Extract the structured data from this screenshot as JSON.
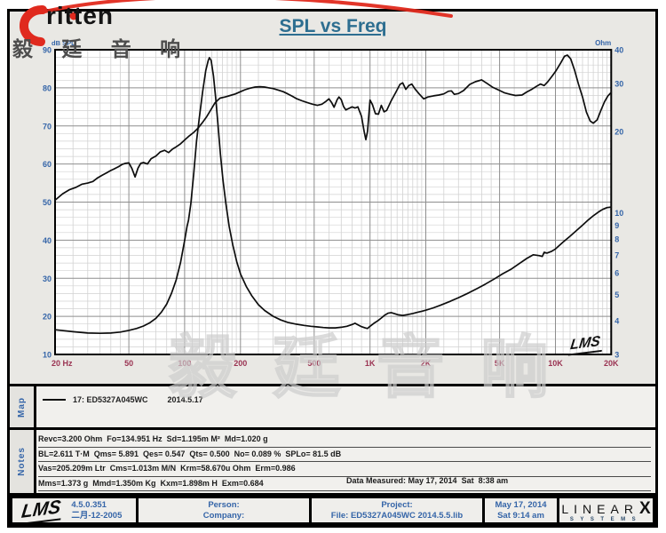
{
  "title": "SPL vs Freq",
  "brand": {
    "logo_text": "ritten",
    "logo_cn": "毅 廷 音 响",
    "watermark": "毅 廷 音 响",
    "accent_red": "#e02a1e"
  },
  "colors": {
    "title": "#2d6e90",
    "axis_blue": "#3565a8",
    "freq_red": "#9a3352",
    "curve": "#0d0d0d",
    "grid_minor": "#d2d2d2",
    "grid_major": "#8e8e8e",
    "plot_bg": "#ffffff"
  },
  "chart_data": {
    "type": "line",
    "title": "SPL vs Freq",
    "inner_logo": "LMS",
    "x_axis": {
      "scale": "log",
      "min": 20,
      "max": 20000,
      "ticks": [
        {
          "f": 20,
          "label": "20 Hz"
        },
        {
          "f": 50,
          "label": "50"
        },
        {
          "f": 100,
          "label": "100"
        },
        {
          "f": 200,
          "label": "200"
        },
        {
          "f": 500,
          "label": "500"
        },
        {
          "f": 1000,
          "label": "1K"
        },
        {
          "f": 2000,
          "label": "2K"
        },
        {
          "f": 5000,
          "label": "5K"
        },
        {
          "f": 10000,
          "label": "10K"
        },
        {
          "f": 20000,
          "label": "20K"
        }
      ]
    },
    "y_left": {
      "label": "dB SPL",
      "min": 10,
      "max": 90,
      "tick_step": 10,
      "ticks": [
        90,
        80,
        70,
        60,
        50,
        40,
        30,
        20,
        10
      ]
    },
    "y_right": {
      "label": "Ohm",
      "scale": "log",
      "min": 3,
      "max": 40,
      "ticks": [
        40,
        30,
        20,
        10,
        9,
        8,
        7,
        6,
        5,
        4,
        3
      ]
    },
    "series": [
      {
        "name": "SPL",
        "axis": "left",
        "units": "dB",
        "points": [
          [
            20,
            50.5
          ],
          [
            22,
            52.2
          ],
          [
            24,
            53.3
          ],
          [
            26,
            53.9
          ],
          [
            28,
            54.7
          ],
          [
            30,
            55.0
          ],
          [
            32,
            55.4
          ],
          [
            34,
            56.4
          ],
          [
            36,
            57.1
          ],
          [
            38,
            57.7
          ],
          [
            40,
            58.3
          ],
          [
            42,
            58.8
          ],
          [
            44,
            59.3
          ],
          [
            46,
            59.9
          ],
          [
            48,
            60.2
          ],
          [
            50,
            60.3
          ],
          [
            52,
            58.8
          ],
          [
            54,
            56.6
          ],
          [
            56,
            58.9
          ],
          [
            58,
            60.2
          ],
          [
            60,
            60.4
          ],
          [
            63,
            60.0
          ],
          [
            66,
            61.4
          ],
          [
            70,
            62.1
          ],
          [
            74,
            63.2
          ],
          [
            78,
            63.6
          ],
          [
            82,
            63.0
          ],
          [
            86,
            63.9
          ],
          [
            90,
            64.5
          ],
          [
            95,
            65.3
          ],
          [
            100,
            66.3
          ],
          [
            106,
            67.4
          ],
          [
            112,
            68.3
          ],
          [
            118,
            69.4
          ],
          [
            124,
            70.7
          ],
          [
            131,
            72.3
          ],
          [
            138,
            74.1
          ],
          [
            146,
            76.1
          ],
          [
            155,
            77.3
          ],
          [
            165,
            77.6
          ],
          [
            176,
            78.0
          ],
          [
            188,
            78.4
          ],
          [
            200,
            79.0
          ],
          [
            212,
            79.5
          ],
          [
            225,
            79.9
          ],
          [
            240,
            80.2
          ],
          [
            255,
            80.3
          ],
          [
            270,
            80.2
          ],
          [
            285,
            80.0
          ],
          [
            300,
            79.8
          ],
          [
            320,
            79.4
          ],
          [
            340,
            79.0
          ],
          [
            360,
            78.4
          ],
          [
            380,
            77.8
          ],
          [
            400,
            77.2
          ],
          [
            430,
            76.6
          ],
          [
            460,
            76.1
          ],
          [
            490,
            75.7
          ],
          [
            520,
            75.4
          ],
          [
            550,
            75.7
          ],
          [
            580,
            76.5
          ],
          [
            600,
            77.1
          ],
          [
            620,
            76.2
          ],
          [
            640,
            74.9
          ],
          [
            665,
            76.9
          ],
          [
            680,
            77.6
          ],
          [
            700,
            76.9
          ],
          [
            720,
            75.1
          ],
          [
            740,
            74.2
          ],
          [
            770,
            74.6
          ],
          [
            800,
            75.0
          ],
          [
            830,
            74.7
          ],
          [
            860,
            75.0
          ],
          [
            900,
            72.5
          ],
          [
            930,
            68.5
          ],
          [
            950,
            66.4
          ],
          [
            970,
            68.6
          ],
          [
            1000,
            76.8
          ],
          [
            1030,
            75.6
          ],
          [
            1070,
            73.2
          ],
          [
            1110,
            73.1
          ],
          [
            1150,
            75.4
          ],
          [
            1190,
            73.7
          ],
          [
            1230,
            74.1
          ],
          [
            1300,
            76.6
          ],
          [
            1380,
            78.9
          ],
          [
            1450,
            80.9
          ],
          [
            1500,
            81.3
          ],
          [
            1560,
            79.6
          ],
          [
            1620,
            80.6
          ],
          [
            1680,
            81.0
          ],
          [
            1750,
            79.7
          ],
          [
            1840,
            78.4
          ],
          [
            1950,
            77.1
          ],
          [
            2050,
            77.6
          ],
          [
            2200,
            77.9
          ],
          [
            2350,
            78.1
          ],
          [
            2500,
            78.4
          ],
          [
            2650,
            79.1
          ],
          [
            2750,
            79.2
          ],
          [
            2850,
            78.3
          ],
          [
            3000,
            78.5
          ],
          [
            3200,
            79.3
          ],
          [
            3450,
            80.9
          ],
          [
            3700,
            81.6
          ],
          [
            4000,
            82.1
          ],
          [
            4300,
            81.1
          ],
          [
            4600,
            80.1
          ],
          [
            4900,
            79.5
          ],
          [
            5300,
            78.7
          ],
          [
            5700,
            78.3
          ],
          [
            6100,
            78.0
          ],
          [
            6600,
            78.1
          ],
          [
            7000,
            78.9
          ],
          [
            7500,
            79.7
          ],
          [
            7900,
            80.4
          ],
          [
            8300,
            81.0
          ],
          [
            8700,
            80.6
          ],
          [
            9100,
            81.6
          ],
          [
            9600,
            83.1
          ],
          [
            10100,
            84.6
          ],
          [
            10700,
            86.6
          ],
          [
            11200,
            88.3
          ],
          [
            11600,
            88.6
          ],
          [
            12100,
            87.6
          ],
          [
            12700,
            84.6
          ],
          [
            13300,
            81.1
          ],
          [
            14000,
            77.6
          ],
          [
            14700,
            73.6
          ],
          [
            15400,
            71.3
          ],
          [
            16000,
            70.7
          ],
          [
            16800,
            71.6
          ],
          [
            17600,
            74.1
          ],
          [
            18400,
            76.3
          ],
          [
            19200,
            77.9
          ],
          [
            20000,
            78.8
          ]
        ]
      },
      {
        "name": "Impedance",
        "axis": "right",
        "units": "Ohm",
        "peak_freq_hz": 134.951,
        "points": [
          [
            20,
            3.7
          ],
          [
            25,
            3.64
          ],
          [
            30,
            3.6
          ],
          [
            35,
            3.59
          ],
          [
            40,
            3.6
          ],
          [
            45,
            3.63
          ],
          [
            50,
            3.68
          ],
          [
            55,
            3.74
          ],
          [
            60,
            3.82
          ],
          [
            65,
            3.93
          ],
          [
            70,
            4.08
          ],
          [
            75,
            4.3
          ],
          [
            80,
            4.6
          ],
          [
            85,
            5.05
          ],
          [
            90,
            5.65
          ],
          [
            95,
            6.55
          ],
          [
            100,
            7.9
          ],
          [
            103,
            8.9
          ],
          [
            105,
            9.4
          ],
          [
            108,
            10.8
          ],
          [
            112,
            14.0
          ],
          [
            116,
            18.5
          ],
          [
            120,
            22.5
          ],
          [
            125,
            28.0
          ],
          [
            130,
            33.5
          ],
          [
            134,
            36.5
          ],
          [
            136,
            37.4
          ],
          [
            139,
            36.5
          ],
          [
            143,
            32.0
          ],
          [
            147,
            26.5
          ],
          [
            151,
            21.5
          ],
          [
            156,
            16.5
          ],
          [
            161,
            13.2
          ],
          [
            167,
            10.8
          ],
          [
            174,
            8.9
          ],
          [
            182,
            7.6
          ],
          [
            191,
            6.6
          ],
          [
            200,
            5.95
          ],
          [
            215,
            5.35
          ],
          [
            230,
            4.95
          ],
          [
            250,
            4.58
          ],
          [
            270,
            4.36
          ],
          [
            300,
            4.15
          ],
          [
            330,
            4.02
          ],
          [
            360,
            3.94
          ],
          [
            400,
            3.88
          ],
          [
            440,
            3.84
          ],
          [
            480,
            3.81
          ],
          [
            520,
            3.79
          ],
          [
            560,
            3.77
          ],
          [
            600,
            3.76
          ],
          [
            650,
            3.76
          ],
          [
            700,
            3.78
          ],
          [
            750,
            3.81
          ],
          [
            800,
            3.87
          ],
          [
            830,
            3.91
          ],
          [
            860,
            3.86
          ],
          [
            900,
            3.8
          ],
          [
            940,
            3.76
          ],
          [
            970,
            3.74
          ],
          [
            1000,
            3.81
          ],
          [
            1050,
            3.91
          ],
          [
            1100,
            3.99
          ],
          [
            1150,
            4.09
          ],
          [
            1200,
            4.19
          ],
          [
            1250,
            4.26
          ],
          [
            1300,
            4.28
          ],
          [
            1350,
            4.25
          ],
          [
            1420,
            4.2
          ],
          [
            1500,
            4.18
          ],
          [
            1600,
            4.21
          ],
          [
            1700,
            4.25
          ],
          [
            1800,
            4.29
          ],
          [
            1900,
            4.33
          ],
          [
            2000,
            4.37
          ],
          [
            2200,
            4.46
          ],
          [
            2400,
            4.56
          ],
          [
            2700,
            4.71
          ],
          [
            3000,
            4.86
          ],
          [
            3400,
            5.06
          ],
          [
            3800,
            5.26
          ],
          [
            4200,
            5.46
          ],
          [
            4700,
            5.71
          ],
          [
            5200,
            5.96
          ],
          [
            5800,
            6.21
          ],
          [
            6400,
            6.5
          ],
          [
            7000,
            6.78
          ],
          [
            7600,
            7.0
          ],
          [
            8200,
            6.95
          ],
          [
            8500,
            6.9
          ],
          [
            8700,
            7.15
          ],
          [
            9000,
            7.1
          ],
          [
            9500,
            7.2
          ],
          [
            10000,
            7.35
          ],
          [
            11000,
            7.8
          ],
          [
            12000,
            8.2
          ],
          [
            13000,
            8.6
          ],
          [
            14000,
            9.0
          ],
          [
            15000,
            9.4
          ],
          [
            16000,
            9.75
          ],
          [
            17000,
            10.05
          ],
          [
            18000,
            10.3
          ],
          [
            19000,
            10.45
          ],
          [
            20000,
            10.5
          ]
        ]
      }
    ]
  },
  "map": {
    "label": "Map",
    "legend_id": "17: ED5327A045WC",
    "legend_date": "2014.5.17"
  },
  "notes": {
    "label": "Notes",
    "lines": [
      "Revc=3.200 Ohm  Fo=134.951 Hz  Sd=1.195m M²  Md=1.020 g",
      "BL=2.611 T·M  Qms= 5.891  Qes= 0.547  Qts= 0.500  No= 0.089 %  SPLo= 81.5 dB",
      "Vas=205.209m Ltr  Cms=1.013m M/N  Krm=58.670u Ohm  Erm=0.986",
      "Mms=1.373 g  Mmd=1.350m Kg  Kxm=1.898m H  Exm=0.684"
    ],
    "data_measured": "Data Measured: May 17, 2014  Sat  8:38 am"
  },
  "footer": {
    "lms_logo": "LMS",
    "version": "4.5.0.351",
    "date_cn": "二月-12-2005",
    "person_label": "Person:",
    "company_label": "Company:",
    "project_label": "Project:",
    "file_label": "File: ED5327A045WC 2014.5.5.lib",
    "date": "May 17, 2014",
    "time": "Sat  9:14 am",
    "linearx_word": "LINEAR",
    "linearx_x": "X",
    "linearx_sub": "SYSTEMS"
  }
}
